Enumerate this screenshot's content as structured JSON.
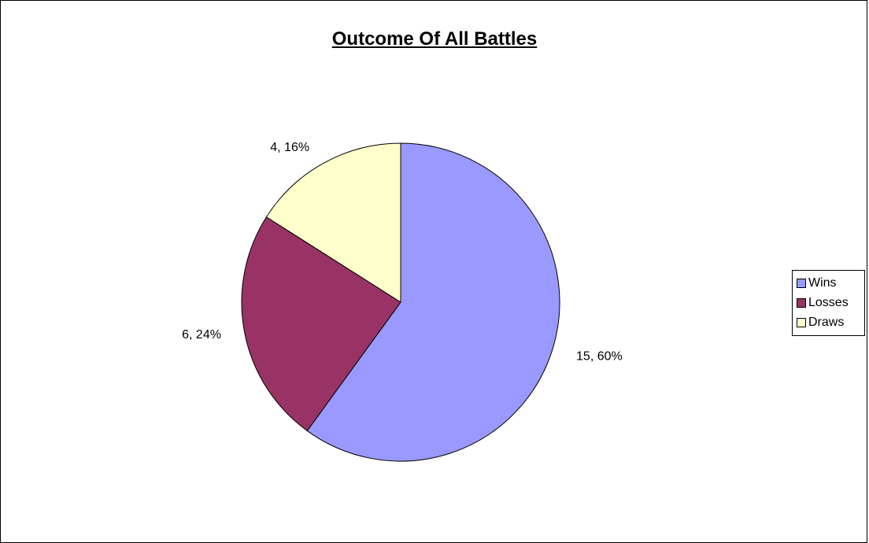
{
  "chart_data": {
    "type": "pie",
    "title": "Outcome Of All Battles",
    "categories": [
      "Wins",
      "Losses",
      "Draws"
    ],
    "values": [
      15,
      6,
      4
    ],
    "percentages": [
      60,
      24,
      16
    ],
    "data_labels": [
      "15, 60%",
      "6, 24%",
      "4, 16%"
    ],
    "colors": [
      "#9999ff",
      "#993366",
      "#ffffcc"
    ],
    "start_angle_deg": 0,
    "direction": "clockwise",
    "legend_position": "right",
    "legend": [
      {
        "label": "Wins",
        "color": "#9999ff"
      },
      {
        "label": "Losses",
        "color": "#993366"
      },
      {
        "label": "Draws",
        "color": "#ffffcc"
      }
    ]
  }
}
